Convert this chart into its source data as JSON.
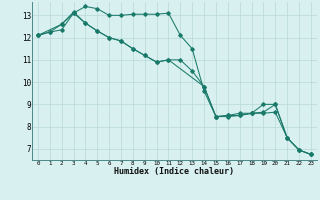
{
  "xlabel": "Humidex (Indice chaleur)",
  "bg_color": "#d8f0f0",
  "grid_color": "#b8d8d8",
  "line_color": "#1a7a6a",
  "xlim": [
    -0.5,
    23.5
  ],
  "ylim": [
    6.5,
    13.6
  ],
  "xticks": [
    0,
    1,
    2,
    3,
    4,
    5,
    6,
    7,
    8,
    9,
    10,
    11,
    12,
    13,
    14,
    15,
    16,
    17,
    18,
    19,
    20,
    21,
    22,
    23
  ],
  "yticks": [
    7,
    8,
    9,
    10,
    11,
    12,
    13
  ],
  "series": [
    {
      "x": [
        0,
        1,
        2,
        3,
        4,
        5,
        6,
        7,
        8,
        9,
        10,
        11,
        12,
        13,
        14,
        15,
        16,
        17,
        18,
        19,
        20,
        21,
        22,
        23
      ],
      "y": [
        12.1,
        12.25,
        12.35,
        13.1,
        13.4,
        13.3,
        13.0,
        13.0,
        13.05,
        13.05,
        13.05,
        13.1,
        12.1,
        11.5,
        9.6,
        8.45,
        8.5,
        8.6,
        8.6,
        9.0,
        9.0,
        7.5,
        6.95,
        6.75
      ]
    },
    {
      "x": [
        0,
        1,
        2,
        3,
        4,
        5,
        6,
        7,
        8,
        9,
        10,
        11,
        12,
        13,
        14,
        15,
        16,
        17,
        18,
        19,
        20,
        21,
        22,
        23
      ],
      "y": [
        12.1,
        12.25,
        12.6,
        13.1,
        12.65,
        12.3,
        12.0,
        11.85,
        11.5,
        11.2,
        10.9,
        11.0,
        11.0,
        10.5,
        9.8,
        8.45,
        8.5,
        8.5,
        8.6,
        8.65,
        9.0,
        7.5,
        6.95,
        6.75
      ]
    },
    {
      "x": [
        0,
        2,
        3,
        4,
        5,
        6,
        7,
        8,
        9,
        10,
        11,
        14,
        15,
        16,
        17,
        18,
        19,
        20,
        21,
        22,
        23
      ],
      "y": [
        12.1,
        12.6,
        13.15,
        12.65,
        12.3,
        12.0,
        11.85,
        11.5,
        11.2,
        10.9,
        11.0,
        9.8,
        8.45,
        8.45,
        8.5,
        8.6,
        8.6,
        8.65,
        7.5,
        6.95,
        6.75
      ]
    }
  ]
}
